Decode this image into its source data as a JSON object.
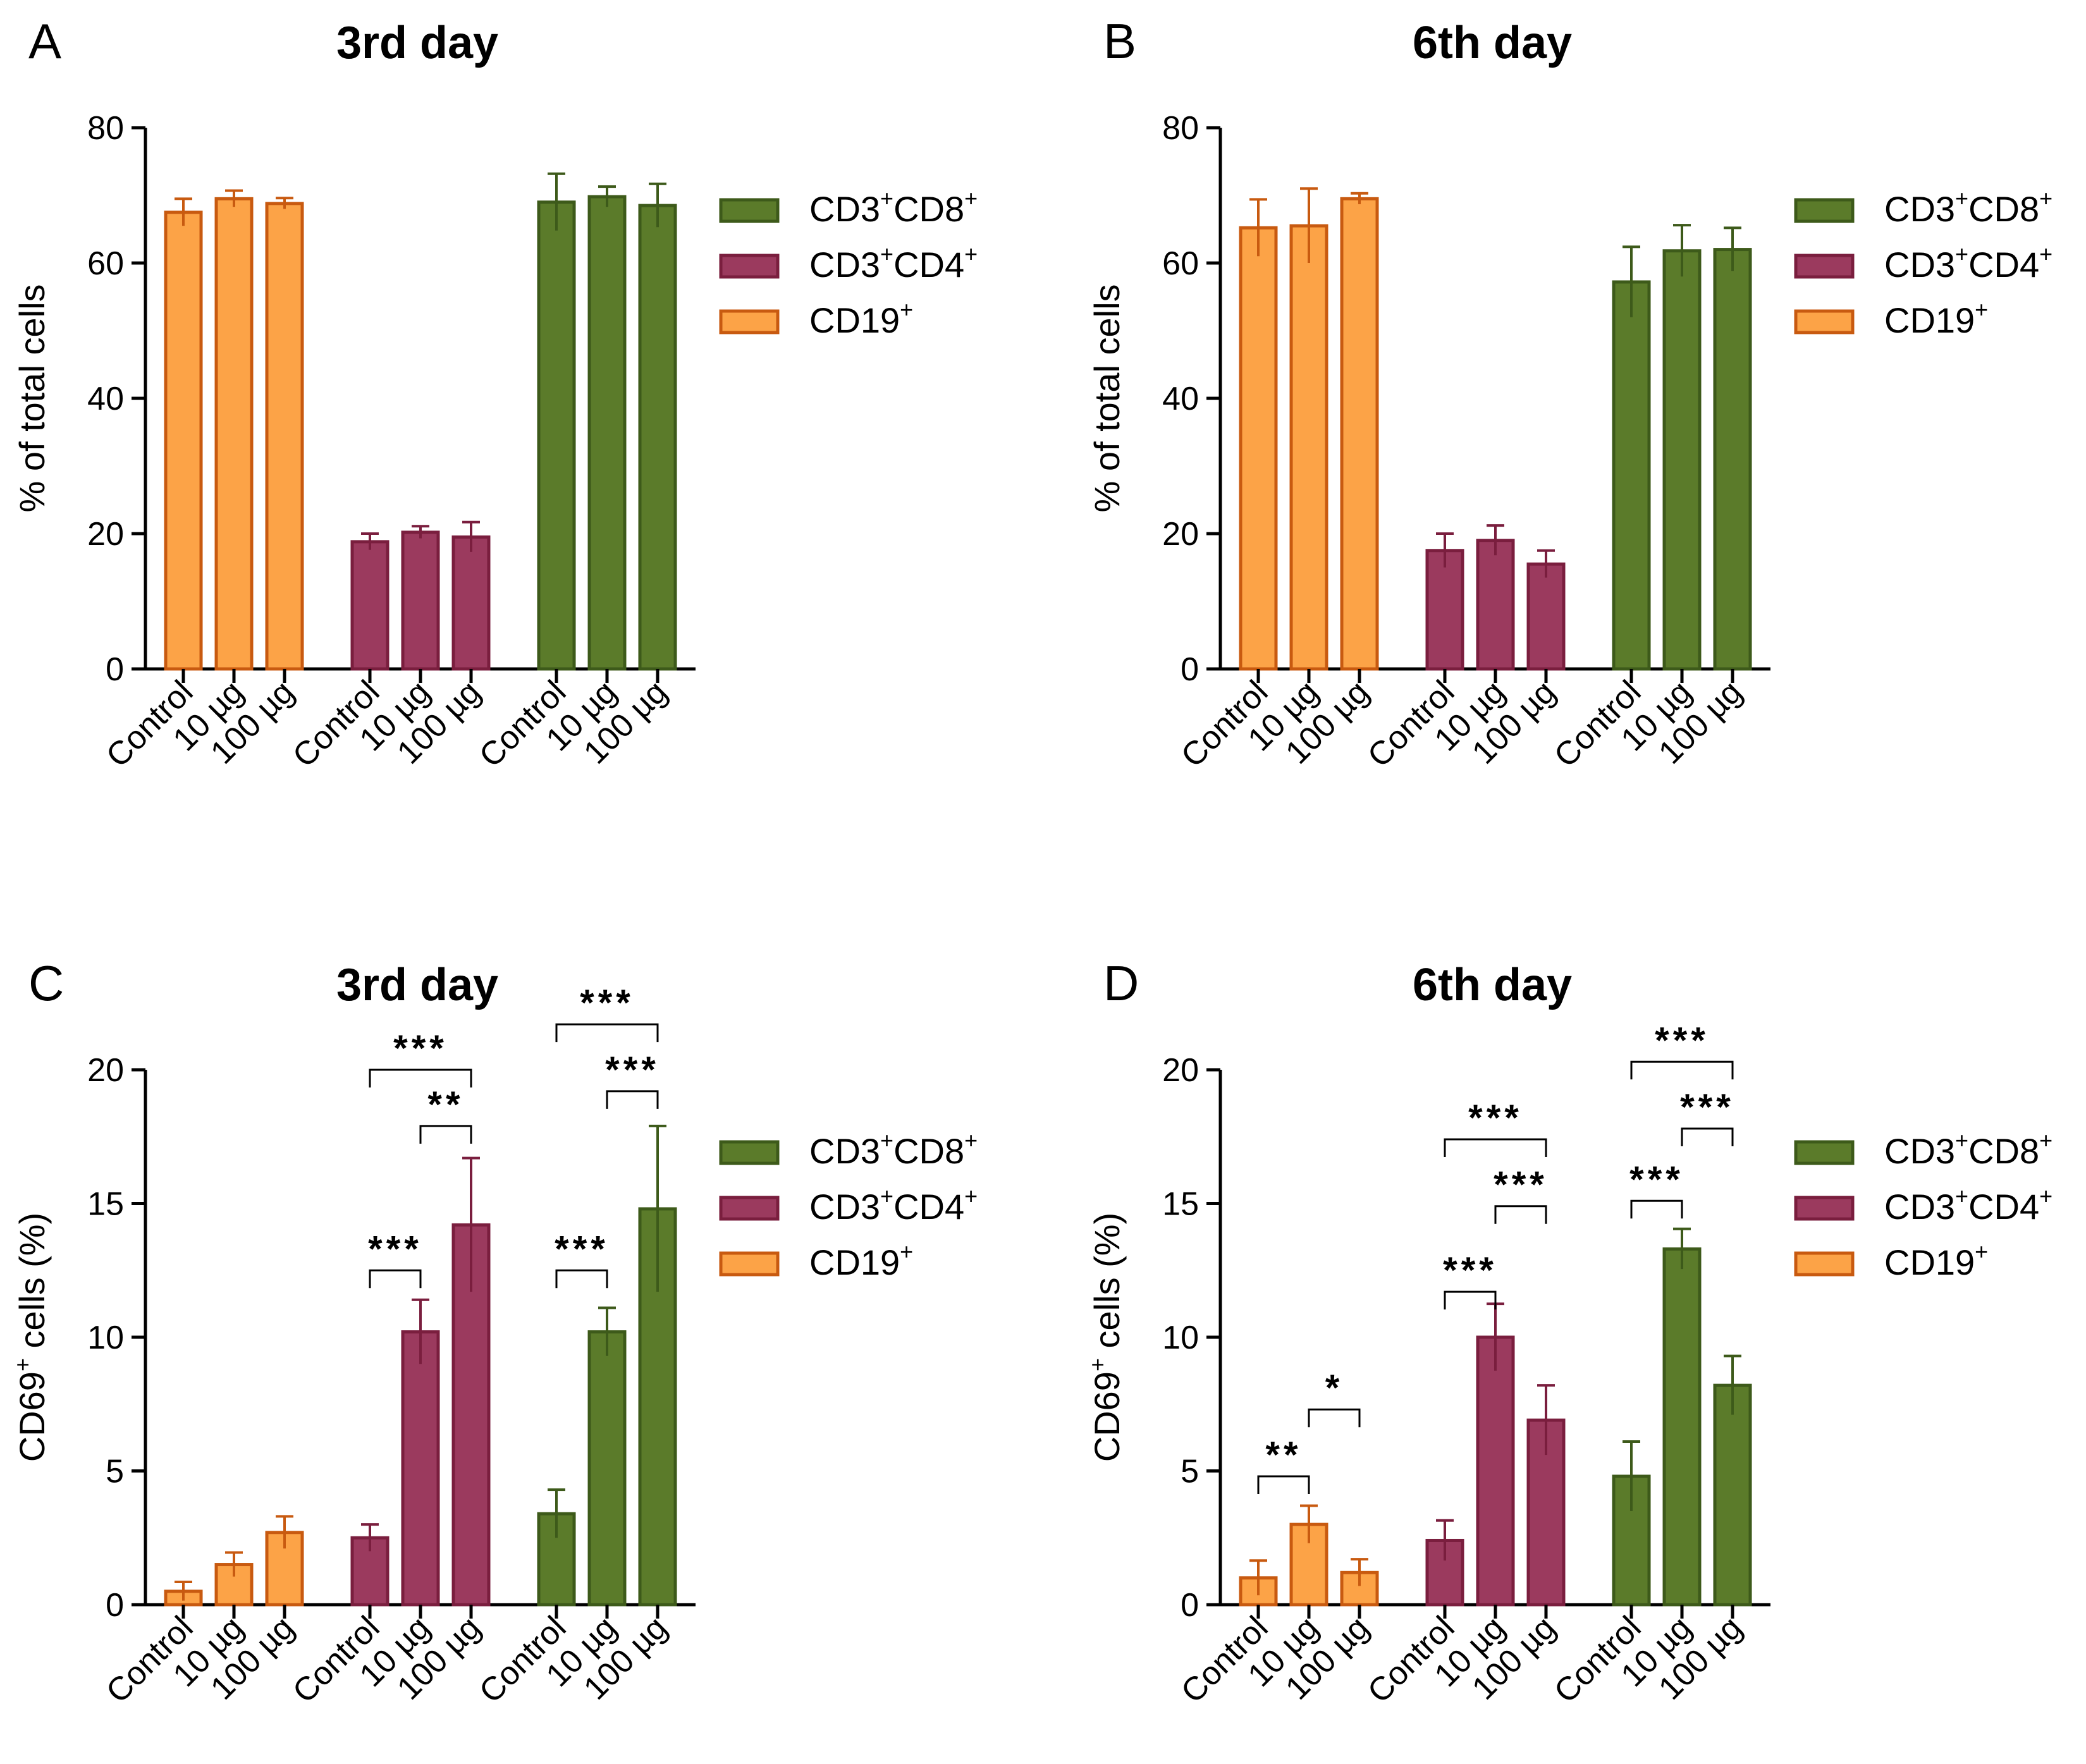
{
  "chart_data": [
    {
      "panel": "A",
      "type": "bar",
      "title": "3rd day",
      "xlabel": "",
      "ylabel": "% of total cells",
      "ylim": [
        0,
        80
      ],
      "yticks": [
        "0",
        "20",
        "40",
        "60",
        "80"
      ],
      "categories": [
        "Control",
        "10 µg",
        "100 µg"
      ],
      "legend": {
        "position": "right",
        "entries": [
          {
            "base": "CD3",
            "sup1": "+",
            "mid": "CD8",
            "sup2": "+",
            "color": "#5b7b2a"
          },
          {
            "base": "CD3",
            "sup1": "+",
            "mid": "CD4",
            "sup2": "+",
            "color": "#9b3a5e"
          },
          {
            "base": "CD19",
            "sup1": "+",
            "mid": "",
            "sup2": "",
            "color": "#fca347"
          }
        ]
      },
      "series": [
        {
          "name": "CD19+",
          "fill": "#fca347",
          "stroke": "#c85a10",
          "values": [
            67.5,
            69.5,
            68.8
          ],
          "errors": [
            2.0,
            1.2,
            0.8
          ]
        },
        {
          "name": "CD3+CD4+",
          "fill": "#9b3a5e",
          "stroke": "#7a1e3e",
          "values": [
            18.8,
            20.2,
            19.5
          ],
          "errors": [
            1.2,
            0.9,
            2.2
          ]
        },
        {
          "name": "CD3+CD8+",
          "fill": "#5b7b2a",
          "stroke": "#3d5a1a",
          "values": [
            69.0,
            69.8,
            68.5
          ],
          "errors": [
            4.2,
            1.5,
            3.2
          ]
        }
      ],
      "significance": []
    },
    {
      "panel": "B",
      "type": "bar",
      "title": "6th day",
      "xlabel": "",
      "ylabel": "% of total cells",
      "ylim": [
        0,
        80
      ],
      "yticks": [
        "0",
        "20",
        "40",
        "60",
        "80"
      ],
      "categories": [
        "Control",
        "10 µg",
        "100 µg"
      ],
      "legend": {
        "position": "right",
        "entries": [
          {
            "base": "CD3",
            "sup1": "+",
            "mid": "CD8",
            "sup2": "+",
            "color": "#5b7b2a"
          },
          {
            "base": "CD3",
            "sup1": "+",
            "mid": "CD4",
            "sup2": "+",
            "color": "#9b3a5e"
          },
          {
            "base": "CD19",
            "sup1": "+",
            "mid": "",
            "sup2": "",
            "color": "#fca347"
          }
        ]
      },
      "series": [
        {
          "name": "CD19+",
          "fill": "#fca347",
          "stroke": "#c85a10",
          "values": [
            65.2,
            65.5,
            69.5
          ],
          "errors": [
            4.2,
            5.5,
            0.8
          ]
        },
        {
          "name": "CD3+CD4+",
          "fill": "#9b3a5e",
          "stroke": "#7a1e3e",
          "values": [
            17.5,
            19.0,
            15.5
          ],
          "errors": [
            2.5,
            2.2,
            2.0
          ]
        },
        {
          "name": "CD3+CD8+",
          "fill": "#5b7b2a",
          "stroke": "#3d5a1a",
          "values": [
            57.2,
            61.8,
            62.0
          ],
          "errors": [
            5.2,
            3.8,
            3.2
          ]
        }
      ],
      "significance": []
    },
    {
      "panel": "C",
      "type": "bar",
      "title": "3rd day",
      "xlabel": "",
      "ylabel": "CD69+ cells (%)",
      "ylim": [
        0,
        20
      ],
      "yticks": [
        "0",
        "5",
        "10",
        "15",
        "20"
      ],
      "categories": [
        "Control",
        "10 µg",
        "100 µg"
      ],
      "legend": {
        "position": "right",
        "entries": [
          {
            "base": "CD3",
            "sup1": "+",
            "mid": "CD8",
            "sup2": "+",
            "color": "#5b7b2a"
          },
          {
            "base": "CD3",
            "sup1": "+",
            "mid": "CD4",
            "sup2": "+",
            "color": "#9b3a5e"
          },
          {
            "base": "CD19",
            "sup1": "+",
            "mid": "",
            "sup2": "",
            "color": "#fca347"
          }
        ]
      },
      "series": [
        {
          "name": "CD19+",
          "fill": "#fca347",
          "stroke": "#c85a10",
          "values": [
            0.5,
            1.5,
            2.7
          ],
          "errors": [
            0.35,
            0.45,
            0.6
          ]
        },
        {
          "name": "CD3+CD4+",
          "fill": "#9b3a5e",
          "stroke": "#7a1e3e",
          "values": [
            2.5,
            10.2,
            14.2
          ],
          "errors": [
            0.5,
            1.2,
            2.5
          ]
        },
        {
          "name": "CD3+CD8+",
          "fill": "#5b7b2a",
          "stroke": "#3d5a1a",
          "values": [
            3.4,
            10.2,
            14.8
          ],
          "errors": [
            0.9,
            0.9,
            3.1
          ]
        }
      ],
      "significance": [
        {
          "group": 1,
          "from": 0,
          "to": 1,
          "y": 12.5,
          "label": "***"
        },
        {
          "group": 1,
          "from": 1,
          "to": 2,
          "y": 17.9,
          "label": "**"
        },
        {
          "group": 1,
          "from": 0,
          "to": 2,
          "y": 20.0,
          "label": "***"
        },
        {
          "group": 2,
          "from": 0,
          "to": 1,
          "y": 12.5,
          "label": "***"
        },
        {
          "group": 2,
          "from": 1,
          "to": 2,
          "y": 19.2,
          "label": "***"
        },
        {
          "group": 2,
          "from": 0,
          "to": 2,
          "y": 21.7,
          "label": "***"
        }
      ]
    },
    {
      "panel": "D",
      "type": "bar",
      "title": "6th day",
      "xlabel": "",
      "ylabel": "CD69+ cells (%)",
      "ylim": [
        0,
        20
      ],
      "yticks": [
        "0",
        "5",
        "10",
        "15",
        "20"
      ],
      "categories": [
        "Control",
        "10 µg",
        "100 µg"
      ],
      "legend": {
        "position": "right",
        "entries": [
          {
            "base": "CD3",
            "sup1": "+",
            "mid": "CD8",
            "sup2": "+",
            "color": "#5b7b2a"
          },
          {
            "base": "CD3",
            "sup1": "+",
            "mid": "CD4",
            "sup2": "+",
            "color": "#9b3a5e"
          },
          {
            "base": "CD19",
            "sup1": "+",
            "mid": "",
            "sup2": "",
            "color": "#fca347"
          }
        ]
      },
      "series": [
        {
          "name": "CD19+",
          "fill": "#fca347",
          "stroke": "#c85a10",
          "values": [
            1.0,
            3.0,
            1.2
          ],
          "errors": [
            0.65,
            0.7,
            0.5
          ]
        },
        {
          "name": "CD3+CD4+",
          "fill": "#9b3a5e",
          "stroke": "#7a1e3e",
          "values": [
            2.4,
            10.0,
            6.9
          ],
          "errors": [
            0.75,
            1.25,
            1.3
          ]
        },
        {
          "name": "CD3+CD8+",
          "fill": "#5b7b2a",
          "stroke": "#3d5a1a",
          "values": [
            4.8,
            13.3,
            8.2
          ],
          "errors": [
            1.3,
            0.75,
            1.1
          ]
        }
      ],
      "significance": [
        {
          "group": 0,
          "from": 0,
          "to": 1,
          "y": 4.8,
          "label": "**"
        },
        {
          "group": 0,
          "from": 1,
          "to": 2,
          "y": 7.3,
          "label": "*"
        },
        {
          "group": 1,
          "from": 0,
          "to": 1,
          "y": 11.7,
          "label": "***"
        },
        {
          "group": 1,
          "from": 1,
          "to": 2,
          "y": 14.9,
          "label": "***"
        },
        {
          "group": 1,
          "from": 0,
          "to": 2,
          "y": 17.4,
          "label": "***"
        },
        {
          "group": 2,
          "from": 0,
          "to": 1,
          "y": 15.1,
          "label": "***"
        },
        {
          "group": 2,
          "from": 1,
          "to": 2,
          "y": 17.8,
          "label": "***"
        },
        {
          "group": 2,
          "from": 0,
          "to": 2,
          "y": 20.3,
          "label": "***"
        }
      ]
    }
  ]
}
